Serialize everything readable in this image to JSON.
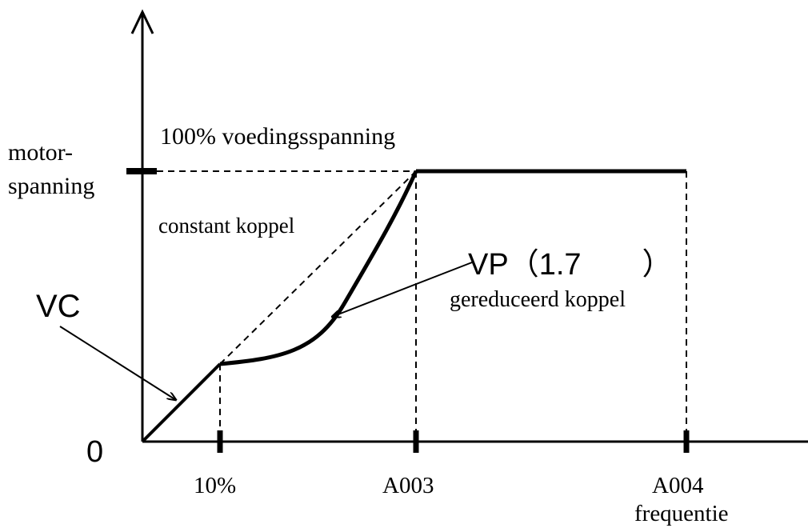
{
  "labels": {
    "supply": "100% voedingsspanning",
    "y_label_1": "motor-",
    "y_label_2": "spanning",
    "constant": "constant koppel",
    "vc": "VC",
    "vp": "VP（1.7　　）",
    "reduced": "gereduceerd koppel",
    "origin": "0",
    "tick_10": "10%",
    "tick_a003": "A003",
    "tick_a004": "A004",
    "x_label": "frequentie"
  }
}
